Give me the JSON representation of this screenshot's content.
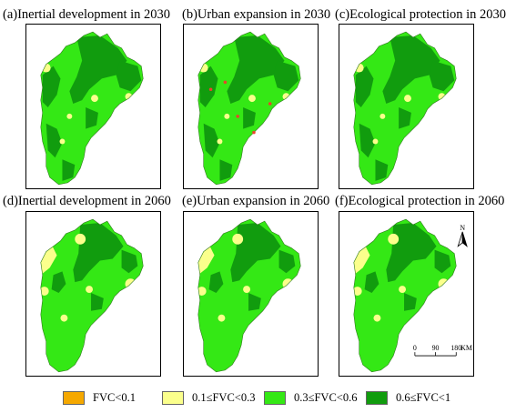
{
  "panels": [
    {
      "title": "(a)Inertial development in 2030"
    },
    {
      "title": "(b)Urban expansion in 2030"
    },
    {
      "title": "(c)Ecological protection in 2030"
    },
    {
      "title": "(d)Inertial development in 2060"
    },
    {
      "title": "(e)Urban expansion in 2060"
    },
    {
      "title": "(f)Ecological protection in 2060"
    }
  ],
  "legend": [
    {
      "label": "FVC<0.1",
      "color": "#f5a800"
    },
    {
      "label": "0.1≤FVC<0.3",
      "color": "#fbff8c"
    },
    {
      "label": "0.3≤FVC<0.6",
      "color": "#34e815"
    },
    {
      "label": "0.6≤FVC<1",
      "color": "#119c0e"
    }
  ],
  "north_arrow": {
    "label": "N"
  },
  "scale_bar": {
    "ticks": [
      "0",
      "90",
      "180"
    ],
    "unit": "KM"
  }
}
